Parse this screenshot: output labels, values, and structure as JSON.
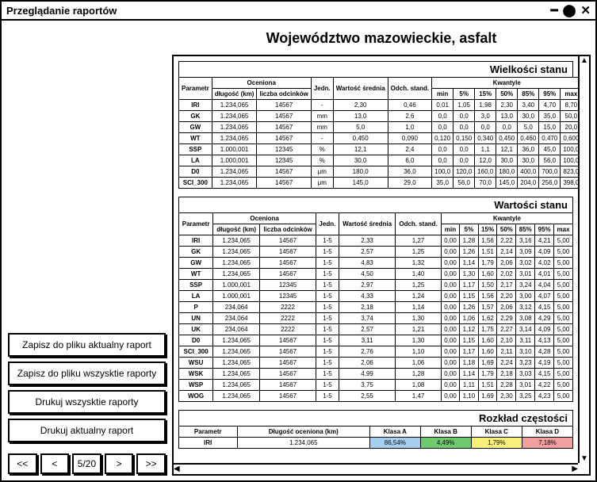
{
  "window": {
    "title": "Przeglądanie raportów"
  },
  "report": {
    "title": "Województwo mazowieckie, asfalt"
  },
  "buttons": {
    "save_current": "Zapisz do pliku aktualny raport",
    "save_all": "Zapisz do pliku wszysktie raporty",
    "print_all": "Drukuj wszysktie raporty",
    "print_current": "Drukuj aktualny raport"
  },
  "pager": {
    "first": "<<",
    "prev": "<",
    "page": "5/20",
    "next": ">",
    "last": ">>"
  },
  "sections": {
    "wielkosci": "Wielkości stanu",
    "wartosci": "Wartości stanu",
    "rozklad": "Rozkład częstości"
  },
  "table_headers": {
    "parametr": "Parametr",
    "oceniona": "Oceniona",
    "dlugosc": "długość (km)",
    "liczba": "liczba odcinków",
    "jedn": "Jedn.",
    "wsr": "Wartość średnia",
    "odch": "Odch. stand.",
    "kwantyle": "Kwantyle",
    "min": "min",
    "p5": "5%",
    "p15": "15%",
    "p50": "50%",
    "p85": "85%",
    "p95": "95%",
    "max": "max"
  },
  "t1_rows": [
    {
      "p": "IRI",
      "d": "1.234,065",
      "l": "14567",
      "j": "-",
      "ws": "2,30",
      "od": "0,46",
      "min": "0,01",
      "p5": "1,05",
      "p15": "1,98",
      "p50": "2,30",
      "p85": "3,40",
      "p95": "4,70",
      "max": "8,70"
    },
    {
      "p": "GK",
      "d": "1.234,065",
      "l": "14567",
      "j": "mm",
      "ws": "13,0",
      "od": "2,6",
      "min": "0,0",
      "p5": "0,0",
      "p15": "3,0",
      "p50": "13,0",
      "p85": "30,0",
      "p95": "35,0",
      "max": "50,0"
    },
    {
      "p": "GW",
      "d": "1.234,065",
      "l": "14567",
      "j": "mm",
      "ws": "5,0",
      "od": "1,0",
      "min": "0,0",
      "p5": "0,0",
      "p15": "0,0",
      "p50": "0,0",
      "p85": "5,0",
      "p95": "15,0",
      "max": "20,0"
    },
    {
      "p": "WT",
      "d": "1.234,065",
      "l": "14567",
      "j": "-",
      "ws": "0,450",
      "od": "0,090",
      "min": "0,120",
      "p5": "0,150",
      "p15": "0,340",
      "p50": "0,450",
      "p85": "0,460",
      "p95": "0,470",
      "max": "0,600"
    },
    {
      "p": "SSP",
      "d": "1.000,001",
      "l": "12345",
      "j": "%",
      "ws": "12,1",
      "od": "2,4",
      "min": "0,0",
      "p5": "0,0",
      "p15": "1,1",
      "p50": "12,1",
      "p85": "36,0",
      "p95": "45,0",
      "max": "100,0"
    },
    {
      "p": "LA",
      "d": "1.000,001",
      "l": "12345",
      "j": "%",
      "ws": "30,0",
      "od": "6,0",
      "min": "0,0",
      "p5": "0,0",
      "p15": "12,0",
      "p50": "30,0",
      "p85": "30,0",
      "p95": "56,0",
      "max": "100,0"
    },
    {
      "p": "D0",
      "d": "1.234,065",
      "l": "14567",
      "j": "μm",
      "ws": "180,0",
      "od": "36,0",
      "min": "100,0",
      "p5": "120,0",
      "p15": "160,0",
      "p50": "180,0",
      "p85": "400,0",
      "p95": "700,0",
      "max": "823,0"
    },
    {
      "p": "SCI_300",
      "d": "1.234,065",
      "l": "14567",
      "j": "μm",
      "ws": "145,0",
      "od": "29,0",
      "min": "35,0",
      "p5": "56,0",
      "p15": "70,0",
      "p50": "145,0",
      "p85": "204,0",
      "p95": "256,0",
      "max": "398,0"
    }
  ],
  "t2_rows": [
    {
      "p": "IRI",
      "d": "1.234,065",
      "l": "14567",
      "j": "1-5",
      "ws": "2,33",
      "od": "1,27",
      "min": "0,00",
      "p5": "1,28",
      "p15": "1,56",
      "p50": "2,22",
      "p85": "3,16",
      "p95": "4,21",
      "max": "5,00"
    },
    {
      "p": "GK",
      "d": "1.234,065",
      "l": "14567",
      "j": "1-5",
      "ws": "2,57",
      "od": "1,25",
      "min": "0,00",
      "p5": "1,26",
      "p15": "1,51",
      "p50": "2,14",
      "p85": "3,09",
      "p95": "4,09",
      "max": "5,00"
    },
    {
      "p": "GW",
      "d": "1.234,065",
      "l": "14567",
      "j": "1-5",
      "ws": "4,83",
      "od": "1,32",
      "min": "0,00",
      "p5": "1,14",
      "p15": "1,79",
      "p50": "2,06",
      "p85": "3,02",
      "p95": "4,02",
      "max": "5,00"
    },
    {
      "p": "WT",
      "d": "1.234,065",
      "l": "14567",
      "j": "1-5",
      "ws": "4,50",
      "od": "1,40",
      "min": "0,00",
      "p5": "1,30",
      "p15": "1,60",
      "p50": "2,02",
      "p85": "3,01",
      "p95": "4,01",
      "max": "5,00"
    },
    {
      "p": "SSP",
      "d": "1.000,001",
      "l": "12345",
      "j": "1-5",
      "ws": "2,97",
      "od": "1,25",
      "min": "0,00",
      "p5": "1,17",
      "p15": "1,50",
      "p50": "2,17",
      "p85": "3,24",
      "p95": "4,04",
      "max": "5,00"
    },
    {
      "p": "LA",
      "d": "1.000,001",
      "l": "12345",
      "j": "1-5",
      "ws": "4,33",
      "od": "1,24",
      "min": "0,00",
      "p5": "1,15",
      "p15": "1,56",
      "p50": "2,20",
      "p85": "3,00",
      "p95": "4,07",
      "max": "5,00"
    },
    {
      "p": "P",
      "d": "234,064",
      "l": "2222",
      "j": "1-5",
      "ws": "2,18",
      "od": "1,14",
      "min": "0,00",
      "p5": "1,26",
      "p15": "1,57",
      "p50": "2,06",
      "p85": "3,12",
      "p95": "4,15",
      "max": "5,00"
    },
    {
      "p": "UN",
      "d": "234,064",
      "l": "2222",
      "j": "1-5",
      "ws": "3,74",
      "od": "1,30",
      "min": "0,00",
      "p5": "1,06",
      "p15": "1,62",
      "p50": "2,29",
      "p85": "3,08",
      "p95": "4,29",
      "max": "5,00"
    },
    {
      "p": "UK",
      "d": "234,064",
      "l": "2222",
      "j": "1-5",
      "ws": "2,57",
      "od": "1,21",
      "min": "0,00",
      "p5": "1,12",
      "p15": "1,75",
      "p50": "2,27",
      "p85": "3,14",
      "p95": "4,09",
      "max": "5,00"
    },
    {
      "p": "D0",
      "d": "1.234,065",
      "l": "14567",
      "j": "1-5",
      "ws": "3,11",
      "od": "1,30",
      "min": "0,00",
      "p5": "1,15",
      "p15": "1,60",
      "p50": "2,10",
      "p85": "3,11",
      "p95": "4,13",
      "max": "5,00"
    },
    {
      "p": "SCI_300",
      "d": "1.234,065",
      "l": "14567",
      "j": "1-5",
      "ws": "2,76",
      "od": "1,10",
      "min": "0,00",
      "p5": "1,17",
      "p15": "1,60",
      "p50": "2,11",
      "p85": "3,10",
      "p95": "4,28",
      "max": "5,00"
    },
    {
      "p": "WSU",
      "d": "1.234,065",
      "l": "14567",
      "j": "1-5",
      "ws": "2,06",
      "od": "1,06",
      "min": "0,00",
      "p5": "1,18",
      "p15": "1,69",
      "p50": "2,24",
      "p85": "3,23",
      "p95": "4,19",
      "max": "5,00"
    },
    {
      "p": "WSK",
      "d": "1.234,065",
      "l": "14567",
      "j": "1-5",
      "ws": "4,99",
      "od": "1,28",
      "min": "0,00",
      "p5": "1,14",
      "p15": "1,79",
      "p50": "2,18",
      "p85": "3,03",
      "p95": "4,15",
      "max": "5,00"
    },
    {
      "p": "WSP",
      "d": "1.234,065",
      "l": "14567",
      "j": "1-5",
      "ws": "3,75",
      "od": "1,08",
      "min": "0,00",
      "p5": "1,11",
      "p15": "1,51",
      "p50": "2,28",
      "p85": "3,01",
      "p95": "4,22",
      "max": "5,00"
    },
    {
      "p": "WOG",
      "d": "1.234,065",
      "l": "14567",
      "j": "1-5",
      "ws": "2,55",
      "od": "1,47",
      "min": "0,00",
      "p5": "1,10",
      "p15": "1,69",
      "p50": "2,30",
      "p85": "3,25",
      "p95": "4,23",
      "max": "5,00"
    }
  ],
  "freq": {
    "h_param": "Parametr",
    "h_dlugosc": "Długość oceniona (km)",
    "h_A": "Klasa A",
    "h_B": "Klasa B",
    "h_C": "Klasa C",
    "h_D": "Klasa D",
    "rows": [
      {
        "p": "IRI",
        "d": "1.234,065",
        "A": "86,54%",
        "B": "4,49%",
        "C": "1,79%",
        "D": "7,18%"
      }
    ],
    "colors": {
      "A": "#a7d0f0",
      "B": "#6fc96f",
      "C": "#f8f07a",
      "D": "#f2a0a0"
    }
  }
}
